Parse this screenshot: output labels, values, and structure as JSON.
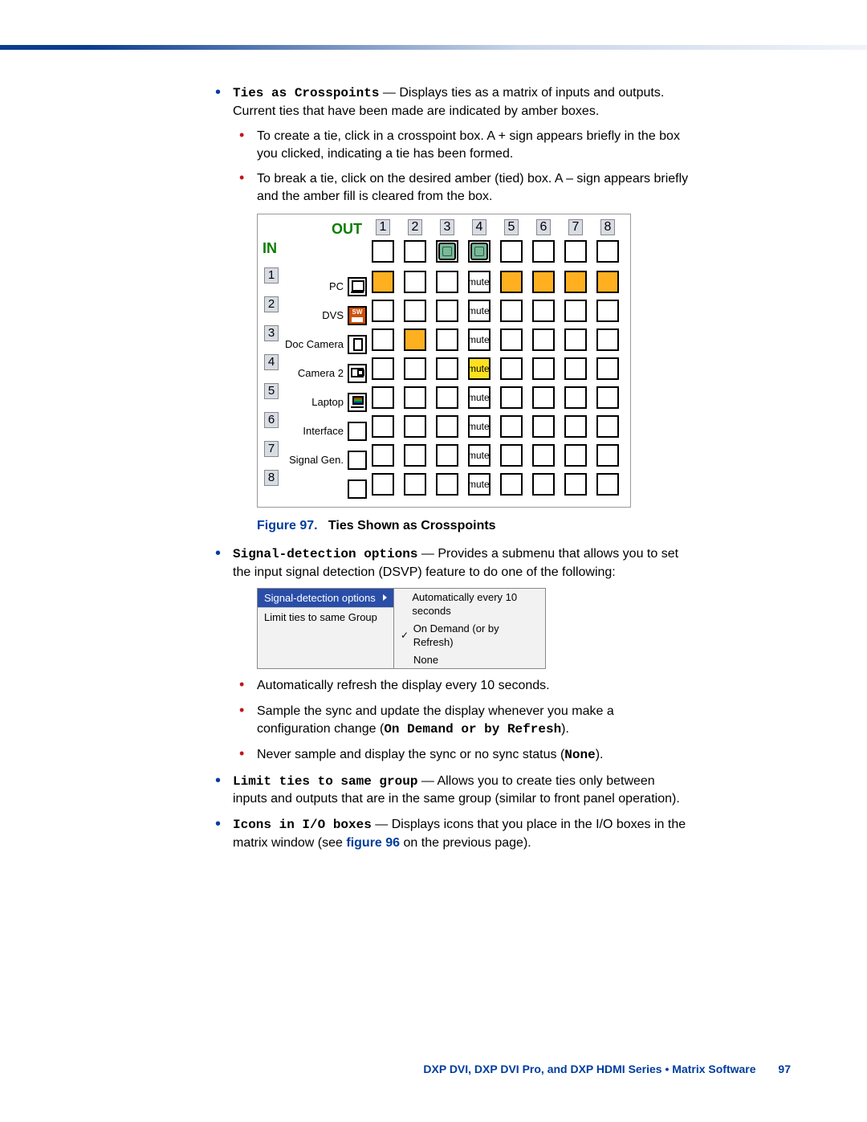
{
  "bullets": {
    "ties_crosspoints_label": "Ties as Crosspoints",
    "ties_crosspoints_text": " — Displays ties as a matrix of inputs and outputs. Current ties that have been made are indicated by amber boxes.",
    "ties_sub1": "To create a tie, click in a crosspoint box. A + sign appears briefly in the box you clicked, indicating a tie has been formed.",
    "ties_sub2": "To break a tie, click on the desired amber (tied) box. A – sign appears briefly and the amber fill is cleared from the box.",
    "signal_label": "Signal-detection options",
    "signal_text": " — Provides a submenu that allows you to set the input signal detection (DSVP) feature to do one of the following:",
    "signal_sub1": "Automatically refresh the display every 10 seconds.",
    "signal_sub2a": "Sample the sync and update the display whenever you make a configuration change (",
    "signal_sub2b": "On Demand or by Refresh",
    "signal_sub2c": ").",
    "signal_sub3a": "Never sample and display the sync or no sync status (",
    "signal_sub3b": "None",
    "signal_sub3c": ").",
    "limit_label": "Limit ties to same group",
    "limit_text": " — Allows you to create ties only between inputs and outputs that are in the same group (similar to front panel operation).",
    "icons_label": "Icons in I/O boxes",
    "icons_text_a": " — Displays icons that you place in the I/O boxes in the matrix window (see ",
    "icons_link": "figure 96",
    "icons_text_b": " on the previous page)."
  },
  "figure": {
    "number": "Figure 97.",
    "title": "Ties Shown as Crosspoints"
  },
  "matrix": {
    "out_label": "OUT",
    "in_label": "IN",
    "columns": [
      "1",
      "2",
      "3",
      "4",
      "5",
      "6",
      "7",
      "8"
    ],
    "out_header_icons": [
      false,
      false,
      true,
      true,
      false,
      false,
      false,
      false
    ],
    "rows": [
      {
        "num": "1",
        "name": "PC",
        "icon": "ic-pc",
        "tied": [
          1,
          5,
          6,
          7,
          8
        ],
        "mute": [
          4
        ]
      },
      {
        "num": "2",
        "name": "DVS",
        "icon": "ic-dvs",
        "tied": [],
        "mute": [
          4
        ]
      },
      {
        "num": "3",
        "name": "Doc Camera",
        "icon": "ic-doc",
        "tied": [
          2
        ],
        "mute": [
          4
        ]
      },
      {
        "num": "4",
        "name": "Camera 2",
        "icon": "ic-cam",
        "tied": [],
        "mute": [
          4
        ],
        "hl": [
          4
        ]
      },
      {
        "num": "5",
        "name": "Laptop",
        "icon": "ic-laptop",
        "tied": [],
        "mute": [
          4
        ]
      },
      {
        "num": "6",
        "name": "Interface",
        "icon": "",
        "tied": [],
        "mute": [
          4
        ]
      },
      {
        "num": "7",
        "name": "Signal Gen.",
        "icon": "",
        "tied": [],
        "mute": [
          4
        ]
      },
      {
        "num": "8",
        "name": "",
        "icon": "",
        "tied": [],
        "mute": [
          4
        ]
      }
    ],
    "mute_text": "mute",
    "colors": {
      "tied": "#ffb020",
      "tied_hl": "#ffe020",
      "in_out_green": "#0a7d00"
    }
  },
  "submenu": {
    "left": [
      {
        "label": "Signal-detection options",
        "hl": true,
        "arrow": true
      },
      {
        "label": "Limit ties to same Group",
        "hl": false,
        "arrow": false
      }
    ],
    "right": [
      {
        "label": "Automatically every 10 seconds",
        "checked": false
      },
      {
        "label": "On Demand (or by Refresh)",
        "checked": true
      },
      {
        "label": "None",
        "checked": false
      }
    ]
  },
  "footer": {
    "text": "DXP DVI, DXP DVI Pro, and DXP HDMI Series • Matrix Software",
    "page": "97"
  }
}
